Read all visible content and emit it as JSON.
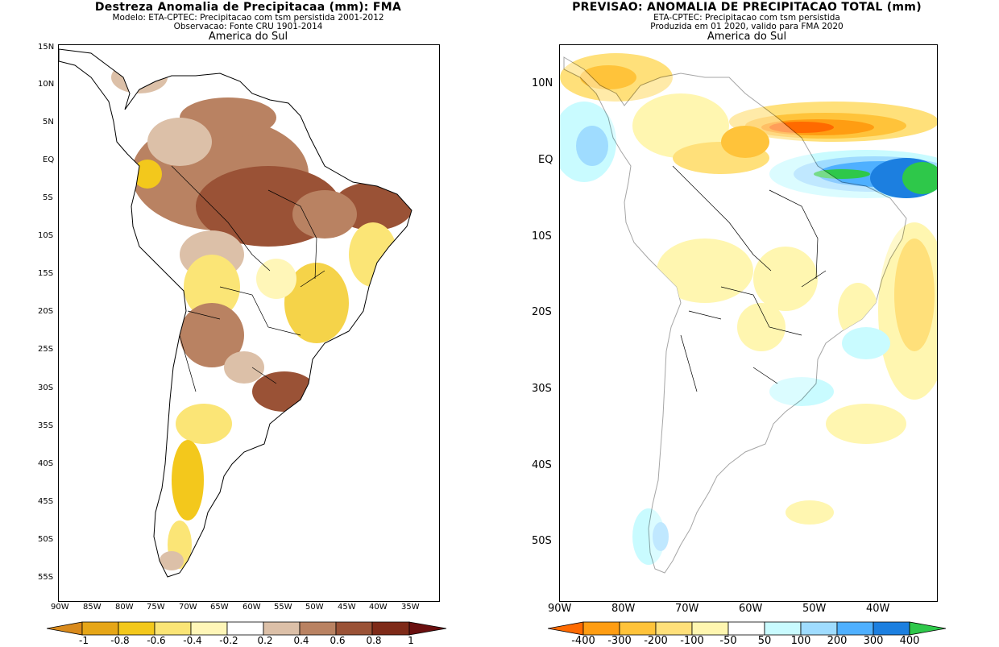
{
  "left": {
    "title": "Destreza Anomalia de Precipitacaa (mm): FMA",
    "line2": "Modelo: ETA-CPTEC: Precipitacao com tsm persistida 2001-2012",
    "line3": "Observacao: Fonte CRU 1901-2014",
    "region": "America do Sul",
    "lat_labels": [
      "15N",
      "10N",
      "5N",
      "EQ",
      "5S",
      "10S",
      "15S",
      "20S",
      "25S",
      "30S",
      "35S",
      "40S",
      "45S",
      "50S",
      "55S"
    ],
    "lon_labels": [
      "90W",
      "85W",
      "80W",
      "75W",
      "70W",
      "65W",
      "60W",
      "55W",
      "50W",
      "45W",
      "40W",
      "35W"
    ],
    "colorbar_labels": [
      "-1",
      "-0.8",
      "-0.6",
      "-0.4",
      "-0.2",
      "0.2",
      "0.4",
      "0.6",
      "0.8",
      "1"
    ],
    "colorbar_colors": [
      "#d98a1c",
      "#e6a617",
      "#f3c81c",
      "#fbe576",
      "#fff6b8",
      "#ffffff",
      "#dcc0a8",
      "#b98262",
      "#9a5236",
      "#7e2a18",
      "#6a0f0f"
    ]
  },
  "right": {
    "title": "PREVISAO: ANOMALIA DE PRECIPITACAO TOTAL (mm)",
    "line2": "ETA-CPTEC: Precipitacao com tsm persistida",
    "line3": "Produzida em 01 2020, valido para FMA 2020",
    "region": "America do Sul",
    "lat_labels": [
      "10N",
      "EQ",
      "10S",
      "20S",
      "30S",
      "40S",
      "50S"
    ],
    "lon_labels": [
      "90W",
      "80W",
      "70W",
      "60W",
      "50W",
      "40W"
    ],
    "colorbar_labels": [
      "-400",
      "-300",
      "-200",
      "-100",
      "-50",
      "50",
      "100",
      "200",
      "300",
      "400"
    ],
    "colorbar_colors": [
      "#ff6a00",
      "#ff9d12",
      "#ffc33a",
      "#ffe07a",
      "#fff6b0",
      "#ffffff",
      "#c9fbff",
      "#9fdcff",
      "#4fb0ff",
      "#1c7fe0",
      "#2ec84a"
    ]
  }
}
